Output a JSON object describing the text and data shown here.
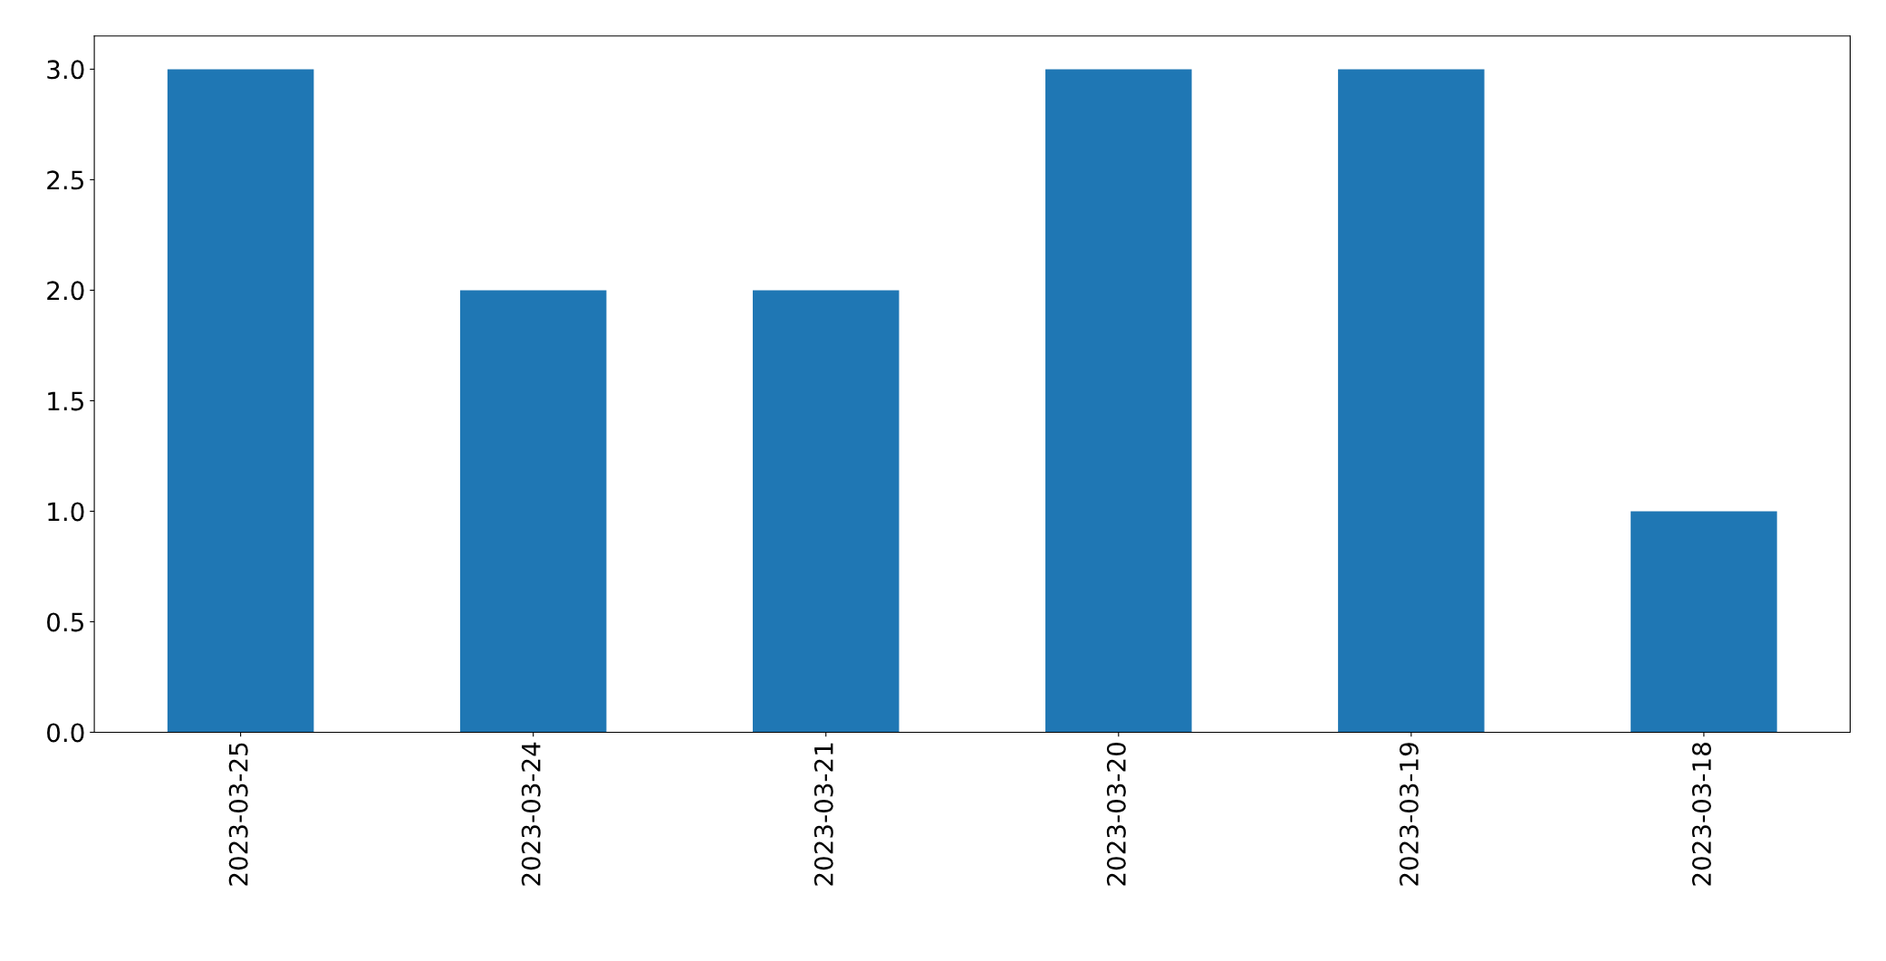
{
  "chart_data": {
    "type": "bar",
    "categories": [
      "2023-03-25",
      "2023-03-24",
      "2023-03-21",
      "2023-03-20",
      "2023-03-19",
      "2023-03-18"
    ],
    "values": [
      3,
      2,
      2,
      3,
      3,
      1
    ],
    "color": "#1f77b4",
    "ylim": [
      0,
      3.15
    ],
    "yticks": [
      {
        "value": 0,
        "label": "0.0"
      },
      {
        "value": 0.5,
        "label": "0.5"
      },
      {
        "value": 1,
        "label": "1.0"
      },
      {
        "value": 1.5,
        "label": "1.5"
      },
      {
        "value": 2,
        "label": "2.0"
      },
      {
        "value": 2.5,
        "label": "2.5"
      },
      {
        "value": 3,
        "label": "3.0"
      }
    ],
    "grid": false,
    "legend": false
  }
}
